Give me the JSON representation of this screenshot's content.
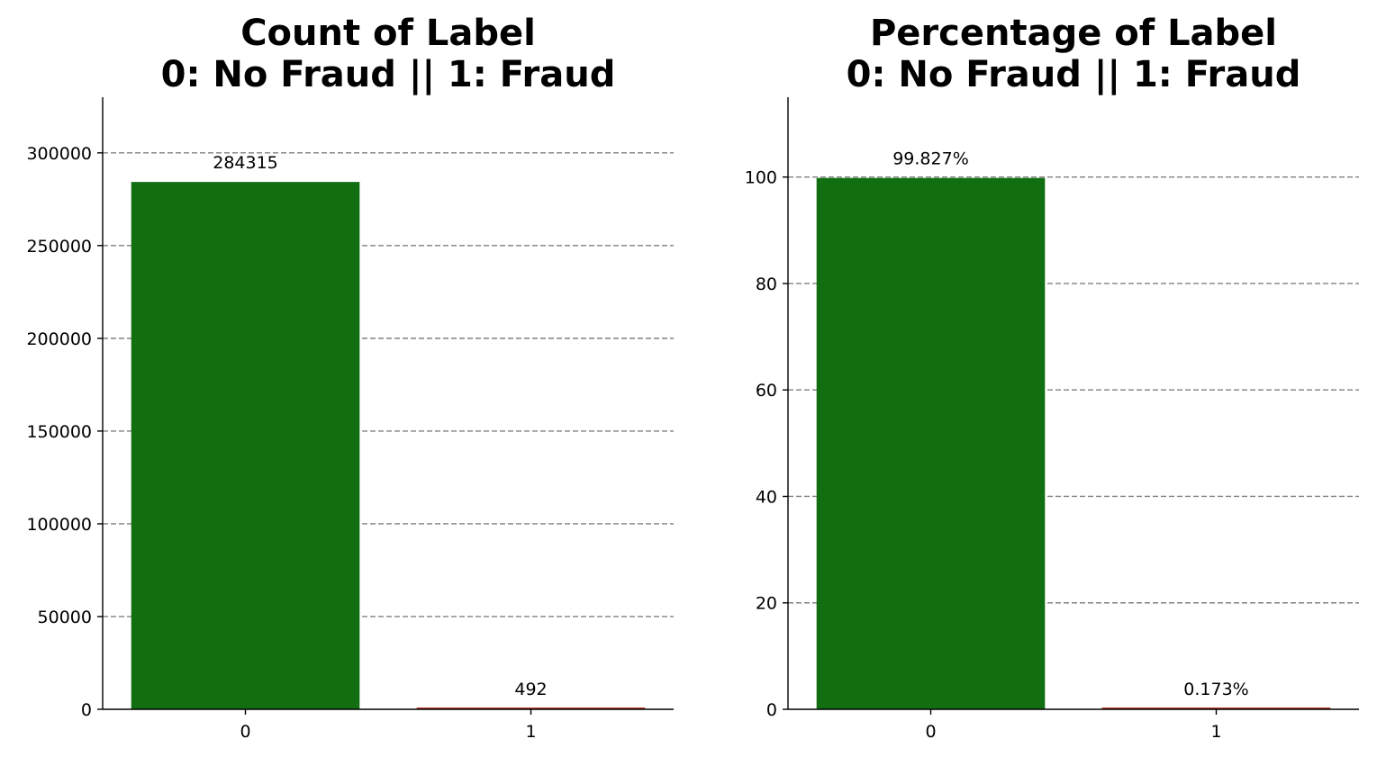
{
  "chart_data": [
    {
      "type": "bar",
      "title_lines": [
        "Count of Label",
        "0: No Fraud || 1: Fraud"
      ],
      "categories": [
        "0",
        "1"
      ],
      "values": [
        284315,
        492
      ],
      "value_labels": [
        "284315",
        "492"
      ],
      "ylim": [
        0,
        330000
      ],
      "yticks": [
        0,
        50000,
        100000,
        150000,
        200000,
        250000,
        300000
      ],
      "ytick_labels": [
        "0",
        "50000",
        "100000",
        "150000",
        "200000",
        "250000",
        "300000"
      ],
      "xlabel": "",
      "ylabel": "",
      "grid": "y, dashed",
      "colors": [
        "#116f11",
        "#c0392b"
      ]
    },
    {
      "type": "bar",
      "title_lines": [
        "Percentage of Label",
        "0: No Fraud || 1: Fraud"
      ],
      "categories": [
        "0",
        "1"
      ],
      "values": [
        99.827,
        0.173
      ],
      "value_labels": [
        "99.827%",
        "0.173%"
      ],
      "ylim": [
        0,
        115
      ],
      "yticks": [
        0,
        20,
        40,
        60,
        80,
        100
      ],
      "ytick_labels": [
        "0",
        "20",
        "40",
        "60",
        "80",
        "100"
      ],
      "xlabel": "",
      "ylabel": "",
      "grid": "y, dashed",
      "colors": [
        "#116f11",
        "#c0392b"
      ]
    }
  ]
}
